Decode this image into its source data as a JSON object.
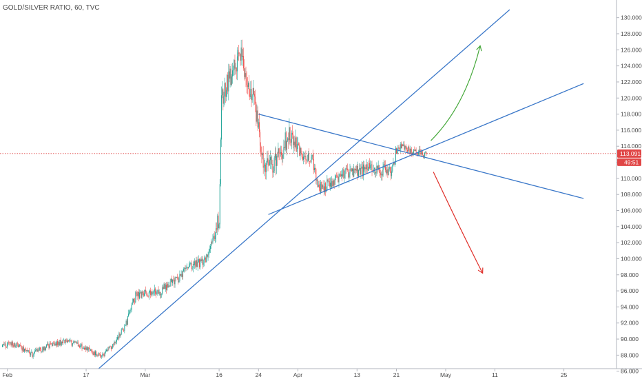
{
  "chart_data": {
    "type": "candlestick",
    "title": "GOLD/SILVER RATIO, 60, TVC",
    "colors": {
      "up": "#26a69a",
      "down": "#ef5350",
      "trendline": "#3b78c9",
      "arrow_up": "#45a83a",
      "arrow_down": "#e0312b",
      "price_line": "#e04646",
      "tag_bg": "#e04646"
    },
    "y_axis": {
      "ylim": [
        84.0,
        131.0
      ],
      "ticks": [
        "84.000",
        "86.000",
        "88.000",
        "90.000",
        "92.000",
        "94.000",
        "96.000",
        "98.000",
        "100.000",
        "102.000",
        "104.000",
        "106.000",
        "108.000",
        "110.000",
        "112.000",
        "114.000",
        "116.000",
        "118.000",
        "120.000",
        "122.000",
        "124.000",
        "126.000",
        "128.000",
        "130.000"
      ]
    },
    "x_axis": {
      "ticks": [
        {
          "label": "Feb",
          "day": 1
        },
        {
          "label": "17",
          "day": 17
        },
        {
          "label": "Mar",
          "day": 29
        },
        {
          "label": "16",
          "day": 44
        },
        {
          "label": "24",
          "day": 52
        },
        {
          "label": "Apr",
          "day": 60
        },
        {
          "label": "13",
          "day": 72
        },
        {
          "label": "21",
          "day": 80
        },
        {
          "label": "May",
          "day": 90
        },
        {
          "label": "11",
          "day": 100
        },
        {
          "label": "25",
          "day": 114
        }
      ]
    },
    "last_price": {
      "value": 113.091,
      "label": "113.091",
      "countdown": "49:51"
    },
    "price_path": [
      [
        0.0,
        89.0
      ],
      [
        2.0,
        89.5
      ],
      [
        6.0,
        88.1
      ],
      [
        10.0,
        89.4
      ],
      [
        13.0,
        89.7
      ],
      [
        17.0,
        88.9
      ],
      [
        20.0,
        87.7
      ],
      [
        22.0,
        89.0
      ],
      [
        25.0,
        91.6
      ],
      [
        27.0,
        95.3
      ],
      [
        29.0,
        95.6
      ],
      [
        32.0,
        96.0
      ],
      [
        36.0,
        97.8
      ],
      [
        38.0,
        99.2
      ],
      [
        41.0,
        99.6
      ],
      [
        43.0,
        103.0
      ],
      [
        44.0,
        105.0
      ],
      [
        44.5,
        120.0
      ],
      [
        45.5,
        121.5
      ],
      [
        47.0,
        123.6
      ],
      [
        48.5,
        125.8
      ],
      [
        49.5,
        122.5
      ],
      [
        51.0,
        120.0
      ],
      [
        52.0,
        116.0
      ],
      [
        53.0,
        112.2
      ],
      [
        55.0,
        111.5
      ],
      [
        57.0,
        113.6
      ],
      [
        58.0,
        115.5
      ],
      [
        60.0,
        113.5
      ],
      [
        61.5,
        112.8
      ],
      [
        63.0,
        112.2
      ],
      [
        64.0,
        109.2
      ],
      [
        65.0,
        108.8
      ],
      [
        67.0,
        109.6
      ],
      [
        69.0,
        110.5
      ],
      [
        71.0,
        110.9
      ],
      [
        73.0,
        111.0
      ],
      [
        75.0,
        111.4
      ],
      [
        77.0,
        111.1
      ],
      [
        79.0,
        110.8
      ],
      [
        80.0,
        113.5
      ],
      [
        81.0,
        113.9
      ],
      [
        82.0,
        113.6
      ],
      [
        83.5,
        113.4
      ],
      [
        85.0,
        113.0
      ],
      [
        86.3,
        113.1
      ]
    ],
    "drawings": {
      "trendlines": [
        {
          "from": {
            "day": 19.5,
            "price": 86.3
          },
          "to": {
            "day": 103.0,
            "price": 131.0
          }
        },
        {
          "from": {
            "day": 52.0,
            "price": 118.0
          },
          "to": {
            "day": 118.0,
            "price": 107.5
          }
        },
        {
          "from": {
            "day": 54.0,
            "price": 105.5
          },
          "to": {
            "day": 118.0,
            "price": 121.8
          }
        }
      ],
      "arrow_up": {
        "from": {
          "day": 87.0,
          "price": 114.7
        },
        "control": {
          "day": 94.0,
          "price": 119.0
        },
        "to": {
          "day": 97.0,
          "price": 126.5
        }
      },
      "arrow_down": {
        "from": {
          "day": 87.5,
          "price": 110.8
        },
        "control": {
          "day": 93.5,
          "price": 103.0
        },
        "to": {
          "day": 97.5,
          "price": 98.2
        }
      }
    }
  }
}
